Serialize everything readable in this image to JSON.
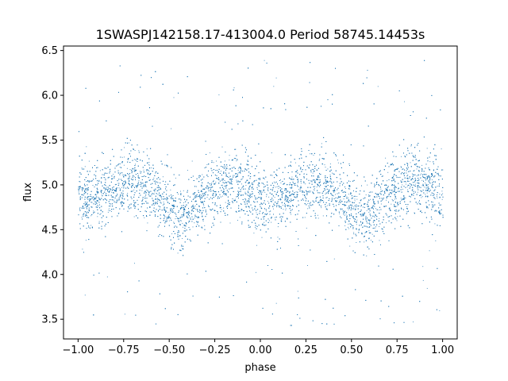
{
  "chart_data": {
    "type": "scatter",
    "title": "1SWASPJ142158.17-413004.0 Period 58745.14453s",
    "xlabel": "phase",
    "ylabel": "flux",
    "xlim": [
      -1.08,
      1.08
    ],
    "ylim": [
      3.28,
      6.55
    ],
    "x_ticks": [
      -1.0,
      -0.75,
      -0.5,
      -0.25,
      0.0,
      0.25,
      0.5,
      0.75,
      1.0
    ],
    "x_tick_labels": [
      "−1.00",
      "−0.75",
      "−0.50",
      "−0.25",
      "0.00",
      "0.25",
      "0.50",
      "0.75",
      "1.00"
    ],
    "y_ticks": [
      3.5,
      4.0,
      4.5,
      5.0,
      5.5,
      6.0,
      6.5
    ],
    "y_tick_labels": [
      "3.5",
      "4.0",
      "4.5",
      "5.0",
      "5.5",
      "6.0",
      "6.5"
    ],
    "grid": false,
    "marker_color": "#1f77b4",
    "x_range": [
      -1.0,
      1.0
    ],
    "light_curve_profile": {
      "phase": [
        -1.0,
        -0.9,
        -0.8,
        -0.7,
        -0.6,
        -0.5,
        -0.45,
        -0.4,
        -0.3,
        -0.2,
        -0.15,
        -0.1,
        0.0,
        0.1,
        0.2,
        0.3,
        0.4,
        0.5,
        0.55,
        0.6,
        0.7,
        0.8,
        0.85,
        0.9,
        1.0
      ],
      "mean_flux": [
        4.82,
        4.88,
        4.98,
        5.05,
        4.95,
        4.72,
        4.62,
        4.68,
        4.9,
        5.02,
        5.05,
        5.0,
        4.82,
        4.85,
        4.97,
        5.05,
        4.96,
        4.72,
        4.62,
        4.68,
        4.9,
        5.02,
        5.05,
        5.0,
        4.82
      ],
      "spread": 0.18
    }
  }
}
